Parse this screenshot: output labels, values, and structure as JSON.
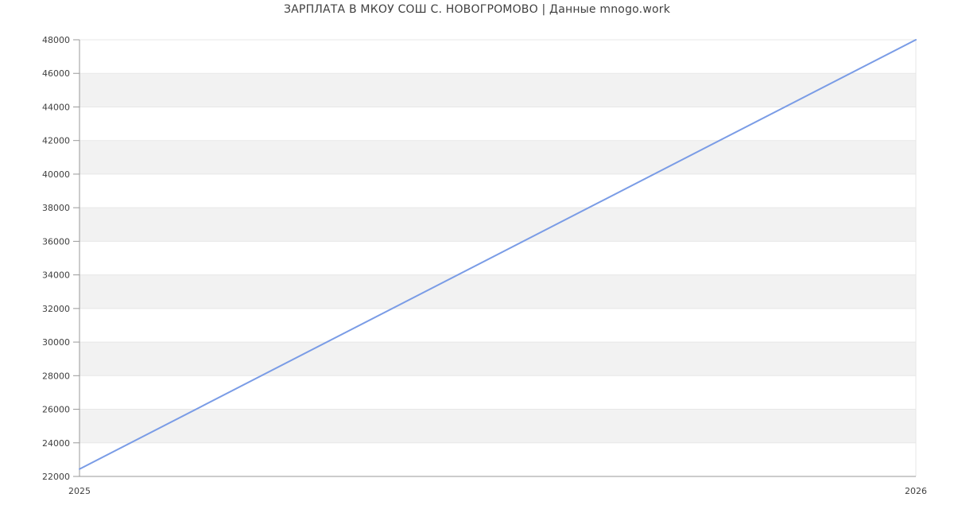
{
  "chart_data": {
    "type": "line",
    "title": "ЗАРПЛАТА В МКОУ СОШ С. НОВОГРОМОВО | Данные mnogo.work",
    "x": [
      2025,
      2026
    ],
    "values": [
      22440,
      48000
    ],
    "xtick_labels": [
      "2025",
      "2026"
    ],
    "ylim": [
      22000,
      48000
    ],
    "ytick_min": 22000,
    "ytick_max": 48000,
    "ytick_step": 2000,
    "grid": true,
    "legend": "none",
    "xlabel": "",
    "ylabel": "",
    "colors": {
      "line": "#7a9ce6",
      "band": "#f2f2f2",
      "gridline": "#e7e7e7",
      "axis": "#999999",
      "tick_label": "#404040",
      "title": "#3f3f3f",
      "background": "#ffffff"
    }
  }
}
